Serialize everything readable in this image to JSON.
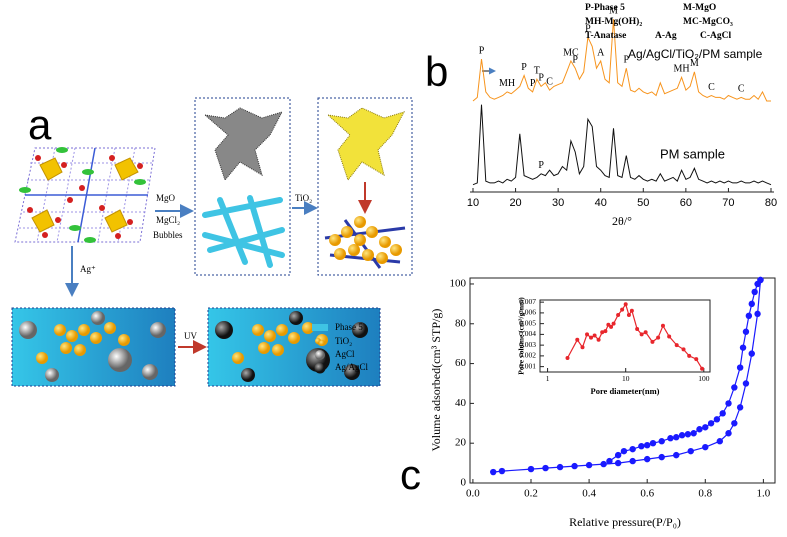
{
  "figure": {
    "panel_labels": [
      "a",
      "b",
      "c"
    ],
    "steps": {
      "mgo": "MgO",
      "mgcl2": "MgCl₂",
      "bubbles": "Bubbles",
      "tio2": "TiO₂",
      "ag": "Ag⁺",
      "uv": "UV"
    },
    "legend": [
      "Phase 5",
      "TiO₂",
      "AgCl",
      "Ag/AgCl"
    ]
  },
  "chart_data": [
    {
      "type": "line",
      "xlabel": "2θ/°",
      "frame": false,
      "phase_key": [
        "P-Phase 5",
        "M-MgO",
        "MH-Mg(OH)₂",
        "MC-MgCO₃",
        "T-Anatase",
        "A-Ag",
        "C-AgCl"
      ],
      "x": [
        10,
        11,
        12,
        13,
        14,
        15,
        16,
        17,
        18,
        19,
        20,
        21,
        22,
        23,
        24,
        25,
        26,
        27,
        28,
        29,
        30,
        31,
        32,
        33,
        34,
        35,
        36,
        37,
        38,
        39,
        40,
        41,
        42,
        43,
        44,
        45,
        46,
        47,
        48,
        49,
        50,
        51,
        52,
        53,
        54,
        55,
        56,
        57,
        58,
        59,
        60,
        61,
        62,
        63,
        64,
        65,
        66,
        67,
        68,
        69,
        70,
        71,
        72,
        73,
        74,
        75,
        76,
        77,
        78,
        79,
        80
      ],
      "series": [
        {
          "name": "Ag/AgCl/TiO₂/PM sample",
          "color": "#f7941d",
          "values": [
            50,
            52,
            73,
            55,
            52,
            51,
            52,
            53,
            55,
            54,
            56,
            58,
            64,
            57,
            55,
            62,
            58,
            60,
            56,
            58,
            59,
            60,
            66,
            72,
            68,
            62,
            66,
            85,
            80,
            68,
            72,
            62,
            60,
            95,
            60,
            58,
            68,
            56,
            55,
            57,
            55,
            54,
            55,
            53,
            60,
            54,
            55,
            56,
            57,
            63,
            56,
            58,
            66,
            55,
            53,
            52,
            53,
            52,
            52,
            51,
            53,
            52,
            51,
            52,
            51,
            51,
            53,
            51,
            55,
            50,
            50
          ]
        },
        {
          "name": "PM sample",
          "color": "#111111",
          "values": [
            4,
            5,
            48,
            6,
            5,
            5,
            6,
            5,
            7,
            6,
            8,
            32,
            9,
            8,
            7,
            8,
            10,
            9,
            12,
            9,
            10,
            14,
            12,
            28,
            22,
            10,
            14,
            40,
            36,
            14,
            12,
            9,
            8,
            35,
            9,
            8,
            20,
            8,
            7,
            9,
            7,
            6,
            7,
            6,
            10,
            6,
            7,
            8,
            6,
            12,
            7,
            8,
            13,
            7,
            6,
            5,
            6,
            5,
            6,
            5,
            6,
            5,
            5,
            6,
            5,
            5,
            6,
            5,
            6,
            5,
            4
          ]
        }
      ],
      "annotations": [
        {
          "text": "P",
          "x": 12,
          "series": 0
        },
        {
          "text": "MH",
          "x": 18,
          "series": 0
        },
        {
          "text": "P",
          "x": 22,
          "series": 0
        },
        {
          "text": "T",
          "x": 25,
          "series": 0
        },
        {
          "text": "P",
          "x": 24,
          "series": 0
        },
        {
          "text": "P",
          "x": 26,
          "series": 0
        },
        {
          "text": "C",
          "x": 28,
          "series": 0
        },
        {
          "text": "MC",
          "x": 33,
          "series": 0
        },
        {
          "text": "P",
          "x": 34,
          "series": 0
        },
        {
          "text": "P",
          "x": 37,
          "series": 0
        },
        {
          "text": "A",
          "x": 40,
          "series": 0
        },
        {
          "text": "M",
          "x": 43,
          "series": 0
        },
        {
          "text": "P",
          "x": 46,
          "series": 0
        },
        {
          "text": "MH",
          "x": 59,
          "series": 0
        },
        {
          "text": "M",
          "x": 62,
          "series": 0
        },
        {
          "text": "C",
          "x": 66,
          "series": 0
        },
        {
          "text": "C",
          "x": 73,
          "series": 0
        },
        {
          "text": "P",
          "x": 26,
          "series": 1
        }
      ],
      "xlim": [
        10,
        80
      ],
      "xticks": [
        10,
        20,
        30,
        40,
        50,
        60,
        70,
        80
      ],
      "ylim": [
        0,
        100
      ]
    },
    {
      "type": "line",
      "markers": true,
      "frame": true,
      "xlabel": "Relative pressure(P/P₀)",
      "ylabel": "Volume adsorbed(cm³ STP/g)",
      "series": [
        {
          "color": "#1a1aff",
          "x": [
            0.07,
            0.1,
            0.2,
            0.25,
            0.3,
            0.35,
            0.4,
            0.45,
            0.5,
            0.55,
            0.6,
            0.65,
            0.7,
            0.75,
            0.8,
            0.85,
            0.88,
            0.9,
            0.92,
            0.94,
            0.96,
            0.98,
            0.99
          ],
          "values": [
            5.5,
            6,
            7,
            7.5,
            8,
            8.5,
            9,
            9.5,
            10,
            11,
            12,
            13,
            14,
            16,
            18,
            21,
            25,
            30,
            38,
            50,
            65,
            85,
            102
          ]
        },
        {
          "color": "#1a1aff",
          "x": [
            0.99,
            0.98,
            0.97,
            0.96,
            0.95,
            0.94,
            0.93,
            0.92,
            0.9,
            0.88,
            0.86,
            0.84,
            0.82,
            0.8,
            0.78,
            0.76,
            0.74,
            0.72,
            0.7,
            0.68,
            0.65,
            0.62,
            0.6,
            0.58,
            0.55,
            0.52,
            0.5,
            0.47
          ],
          "values": [
            102,
            100,
            96,
            90,
            84,
            76,
            68,
            58,
            48,
            40,
            35,
            32,
            30,
            28,
            27,
            25,
            24.5,
            24,
            23,
            22.5,
            21,
            20,
            19,
            18.5,
            17,
            16,
            14,
            11
          ]
        }
      ],
      "xlim": [
        -0.01,
        1.04
      ],
      "xticks": [
        {
          "value": 0,
          "label": "0.0"
        },
        0.2,
        0.4,
        0.6,
        0.8,
        {
          "value": 1,
          "label": "1.0"
        }
      ],
      "ylim": [
        0,
        103
      ],
      "yticks": [
        0,
        20,
        40,
        60,
        80,
        100
      ]
    },
    {
      "type": "line",
      "markers": true,
      "frame": true,
      "log_x": true,
      "xlabel": "Pore diameter(nm)",
      "ylabel": "Pore volume (cm³/g·nm)",
      "series": [
        {
          "color": "#e8262c",
          "x": [
            1.8,
            2.4,
            2.8,
            3.2,
            3.6,
            4,
            4.5,
            5,
            5.5,
            6,
            6.5,
            7,
            8,
            9,
            10,
            11,
            12,
            14,
            16,
            18,
            22,
            26,
            30,
            36,
            45,
            55,
            65,
            80,
            95
          ],
          "values": [
            0.0018,
            0.0035,
            0.0028,
            0.004,
            0.0037,
            0.0039,
            0.0035,
            0.0042,
            0.0043,
            0.0049,
            0.0047,
            0.005,
            0.0058,
            0.0063,
            0.0068,
            0.0058,
            0.0062,
            0.0045,
            0.004,
            0.0042,
            0.0033,
            0.0037,
            0.0048,
            0.0038,
            0.003,
            0.0026,
            0.002,
            0.0017,
            0.0008
          ]
        }
      ],
      "xlim": [
        0.8,
        120
      ],
      "xticks": [
        1,
        10,
        100
      ],
      "ylim": [
        0.0005,
        0.0072
      ],
      "yticks": [
        0.001,
        0.002,
        0.003,
        0.004,
        0.005,
        0.006,
        0.007
      ]
    }
  ]
}
